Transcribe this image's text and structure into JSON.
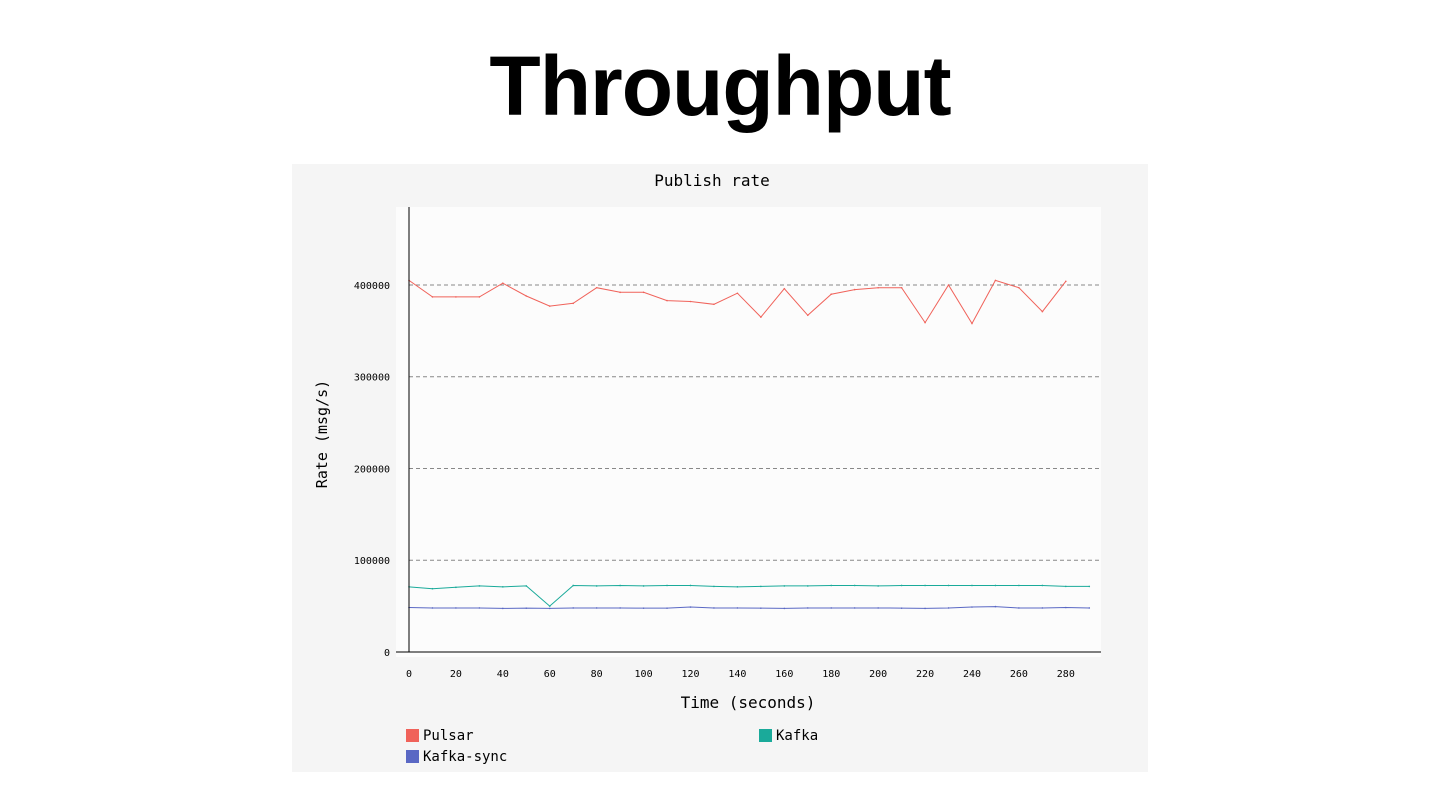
{
  "slide": {
    "title": "Throughput"
  },
  "chart_data": {
    "type": "line",
    "title": "Publish rate",
    "xlabel": "Time (seconds)",
    "ylabel": "Rate (msg/s)",
    "xlim": [
      0,
      295
    ],
    "ylim": [
      0,
      485000
    ],
    "x_ticks": [
      0,
      20,
      40,
      60,
      80,
      100,
      120,
      140,
      160,
      180,
      200,
      220,
      240,
      260,
      280
    ],
    "y_ticks": [
      0,
      100000,
      200000,
      300000,
      400000
    ],
    "grid": "horizontal-dashed",
    "legend_position": "bottom",
    "series": [
      {
        "name": "Pulsar",
        "color": "#f0625a",
        "x": [
          0,
          10,
          20,
          30,
          40,
          50,
          60,
          70,
          80,
          90,
          100,
          110,
          120,
          130,
          140,
          150,
          160,
          170,
          180,
          190,
          200,
          210,
          220,
          230,
          240,
          250,
          260,
          270,
          280
        ],
        "values": [
          405000,
          387000,
          387000,
          387000,
          402000,
          388000,
          377000,
          380000,
          397000,
          392000,
          392000,
          383000,
          382000,
          379000,
          391000,
          365000,
          396000,
          367000,
          390000,
          395000,
          397000,
          397000,
          359000,
          400000,
          358000,
          405000,
          397000,
          371000,
          404000
        ]
      },
      {
        "name": "Kafka",
        "color": "#1aaa9a",
        "x": [
          0,
          10,
          20,
          30,
          40,
          50,
          60,
          70,
          80,
          90,
          100,
          110,
          120,
          130,
          140,
          150,
          160,
          170,
          180,
          190,
          200,
          210,
          220,
          230,
          240,
          250,
          260,
          270,
          280,
          290
        ],
        "values": [
          71000,
          69000,
          70500,
          72000,
          71000,
          72000,
          50000,
          72500,
          72000,
          72500,
          72000,
          72500,
          72500,
          71500,
          71000,
          71500,
          72000,
          72000,
          72500,
          72500,
          72000,
          72500,
          72500,
          72500,
          72500,
          72500,
          72500,
          72500,
          71500,
          71500
        ]
      },
      {
        "name": "Kafka-sync",
        "color": "#5a68c4",
        "x": [
          0,
          10,
          20,
          30,
          40,
          50,
          60,
          70,
          80,
          90,
          100,
          110,
          120,
          130,
          140,
          150,
          160,
          170,
          180,
          190,
          200,
          210,
          220,
          230,
          240,
          250,
          260,
          270,
          280,
          290
        ],
        "values": [
          48500,
          48000,
          48000,
          48000,
          47500,
          47800,
          47500,
          48000,
          48000,
          48000,
          47800,
          47800,
          49000,
          48000,
          48000,
          47800,
          47500,
          48000,
          48000,
          48000,
          48000,
          47800,
          47500,
          48000,
          49000,
          49500,
          48000,
          48000,
          48500,
          48000
        ]
      }
    ]
  }
}
